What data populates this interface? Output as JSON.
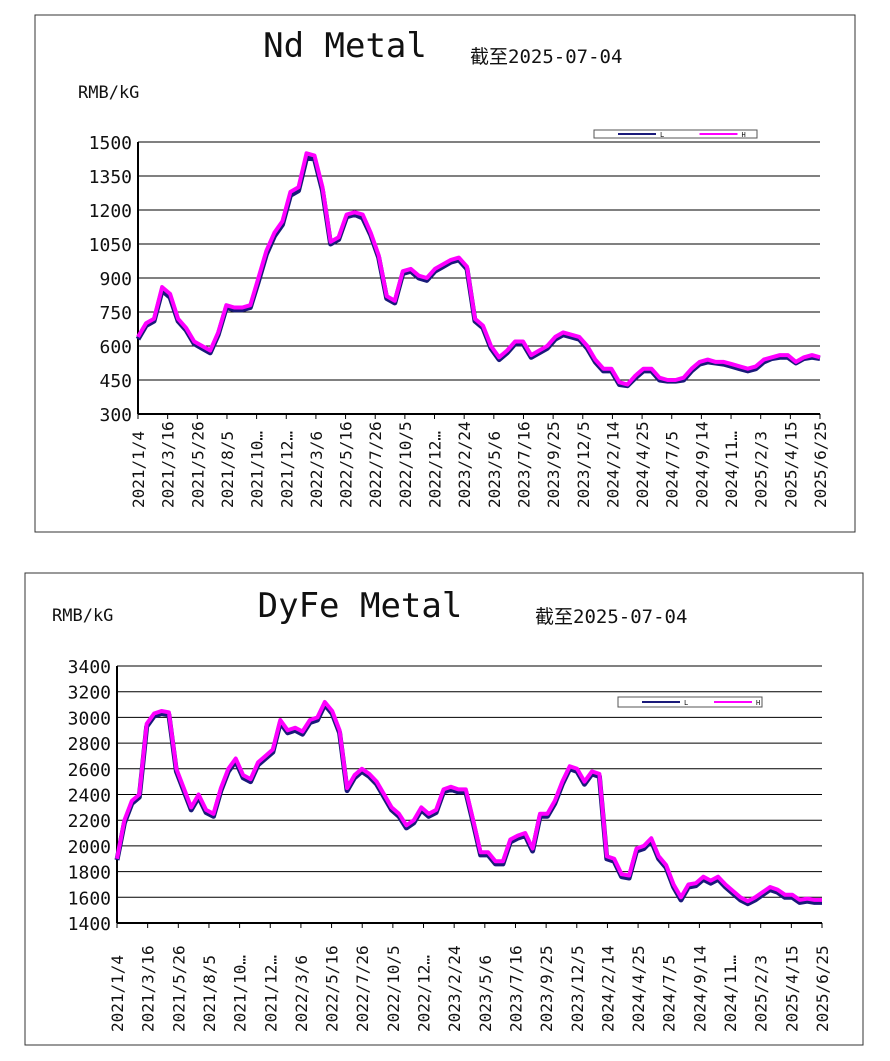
{
  "colors": {
    "L": "#1a1a7a",
    "H": "#ff00ff",
    "grid": "#000000"
  },
  "chart_data": [
    {
      "type": "line",
      "title": "Nd Metal",
      "subtitle": "截至2025-07-04",
      "ylabel": "RMB/kG",
      "ylim": [
        300,
        1500
      ],
      "yticks": [
        300,
        450,
        600,
        750,
        900,
        1050,
        1200,
        1350,
        1500
      ],
      "xticks": [
        "2021/1/4",
        "2021/3/16",
        "2021/5/26",
        "2021/8/5",
        "2021/10…",
        "2021/12…",
        "2022/3/6",
        "2022/5/16",
        "2022/7/26",
        "2022/10/5",
        "2022/12…",
        "2023/2/24",
        "2023/5/6",
        "2023/7/16",
        "2023/9/25",
        "2023/12/5",
        "2024/2/14",
        "2024/4/25",
        "2024/7/5",
        "2024/9/14",
        "2024/11…",
        "2025/2/3",
        "2025/4/15",
        "2025/6/25"
      ],
      "legend": [
        "L",
        "H"
      ],
      "legend_position": "top-right",
      "grid": true,
      "series": [
        {
          "name": "H",
          "values": [
            640,
            700,
            720,
            860,
            830,
            720,
            680,
            620,
            600,
            580,
            660,
            780,
            770,
            770,
            780,
            900,
            1020,
            1100,
            1150,
            1280,
            1300,
            1450,
            1440,
            1300,
            1060,
            1080,
            1180,
            1190,
            1180,
            1100,
            1000,
            820,
            800,
            930,
            940,
            910,
            900,
            940,
            960,
            980,
            990,
            950,
            720,
            690,
            600,
            550,
            580,
            620,
            620,
            560,
            580,
            600,
            640,
            660,
            650,
            640,
            600,
            540,
            500,
            500,
            440,
            430,
            470,
            500,
            500,
            460,
            450,
            450,
            460,
            500,
            530,
            540,
            530,
            530,
            520,
            510,
            500,
            510,
            540,
            550,
            560,
            560,
            530,
            550,
            560,
            550
          ]
        },
        {
          "name": "L",
          "values": [
            630,
            690,
            710,
            845,
            815,
            710,
            670,
            610,
            590,
            570,
            650,
            770,
            760,
            760,
            770,
            885,
            1005,
            1085,
            1135,
            1265,
            1285,
            1430,
            1425,
            1285,
            1050,
            1070,
            1170,
            1180,
            1165,
            1090,
            990,
            810,
            790,
            920,
            930,
            900,
            890,
            930,
            950,
            970,
            980,
            940,
            710,
            680,
            590,
            540,
            570,
            610,
            610,
            550,
            570,
            590,
            630,
            650,
            640,
            630,
            590,
            530,
            490,
            490,
            430,
            425,
            460,
            490,
            490,
            450,
            445,
            445,
            450,
            490,
            520,
            530,
            525,
            520,
            510,
            500,
            490,
            500,
            530,
            545,
            550,
            550,
            525,
            545,
            550,
            545
          ]
        }
      ]
    },
    {
      "type": "line",
      "title": "DyFe Metal",
      "subtitle": "截至2025-07-04",
      "ylabel": "RMB/kG",
      "ylim": [
        1400,
        3400
      ],
      "yticks": [
        1400,
        1600,
        1800,
        2000,
        2200,
        2400,
        2600,
        2800,
        3000,
        3200,
        3400
      ],
      "xticks": [
        "2021/1/4",
        "2021/3/16",
        "2021/5/26",
        "2021/8/5",
        "2021/10…",
        "2021/12…",
        "2022/3/6",
        "2022/5/16",
        "2022/7/26",
        "2022/10/5",
        "2022/12…",
        "2023/2/24",
        "2023/5/6",
        "2023/7/16",
        "2023/9/25",
        "2023/12/5",
        "2024/2/14",
        "2024/4/25",
        "2024/7/5",
        "2024/9/14",
        "2024/11…",
        "2025/2/3",
        "2025/4/15",
        "2025/6/25"
      ],
      "legend": [
        "L",
        "H"
      ],
      "legend_position": "top-right",
      "grid": true,
      "series": [
        {
          "name": "H",
          "values": [
            1900,
            2200,
            2350,
            2400,
            2950,
            3030,
            3050,
            3040,
            2600,
            2450,
            2300,
            2400,
            2280,
            2250,
            2450,
            2600,
            2680,
            2550,
            2520,
            2650,
            2700,
            2750,
            2980,
            2900,
            2920,
            2890,
            2980,
            3000,
            3120,
            3050,
            2900,
            2450,
            2550,
            2600,
            2560,
            2500,
            2400,
            2300,
            2250,
            2160,
            2200,
            2300,
            2250,
            2280,
            2440,
            2460,
            2440,
            2440,
            2200,
            1950,
            1950,
            1880,
            1880,
            2050,
            2080,
            2100,
            1980,
            2250,
            2250,
            2350,
            2500,
            2620,
            2600,
            2500,
            2580,
            2560,
            1920,
            1900,
            1780,
            1770,
            1980,
            2000,
            2060,
            1920,
            1850,
            1700,
            1600,
            1700,
            1710,
            1760,
            1730,
            1760,
            1700,
            1650,
            1600,
            1570,
            1600,
            1640,
            1680,
            1660,
            1620,
            1620,
            1580,
            1590,
            1580,
            1580
          ]
        },
        {
          "name": "L",
          "values": [
            1890,
            2180,
            2330,
            2380,
            2930,
            3010,
            3030,
            3020,
            2580,
            2430,
            2280,
            2380,
            2260,
            2230,
            2430,
            2580,
            2660,
            2530,
            2500,
            2630,
            2680,
            2730,
            2960,
            2880,
            2900,
            2870,
            2960,
            2980,
            3100,
            3030,
            2880,
            2430,
            2530,
            2580,
            2540,
            2480,
            2380,
            2280,
            2230,
            2140,
            2180,
            2280,
            2230,
            2260,
            2420,
            2440,
            2420,
            2420,
            2180,
            1930,
            1930,
            1860,
            1860,
            2030,
            2060,
            2080,
            1960,
            2230,
            2230,
            2330,
            2480,
            2600,
            2580,
            2480,
            2560,
            2540,
            1900,
            1880,
            1760,
            1750,
            1960,
            1980,
            2040,
            1900,
            1830,
            1680,
            1580,
            1680,
            1690,
            1740,
            1710,
            1740,
            1680,
            1630,
            1580,
            1550,
            1580,
            1620,
            1660,
            1640,
            1600,
            1600,
            1560,
            1570,
            1560,
            1560
          ]
        }
      ]
    }
  ]
}
